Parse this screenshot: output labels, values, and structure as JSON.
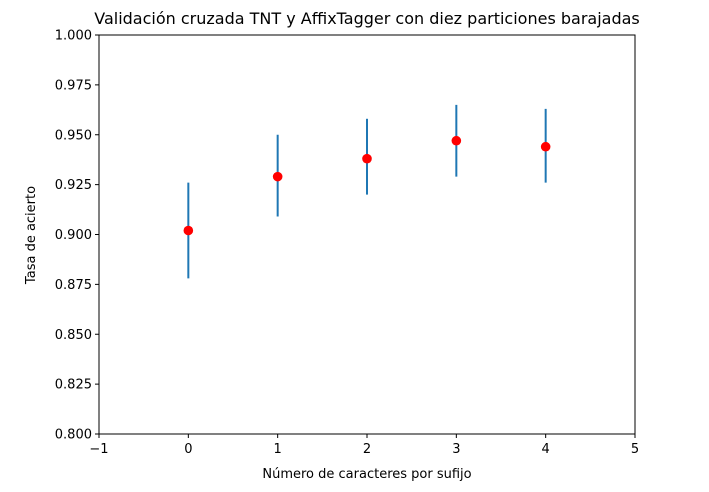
{
  "chart_data": {
    "type": "scatter",
    "title": "Validación cruzada TNT y AffixTagger con diez particiones barajadas",
    "xlabel": "Número de caracteres por sufijo",
    "ylabel": "Tasa de acierto",
    "xlim": [
      -1,
      5
    ],
    "ylim": [
      0.8,
      1.0
    ],
    "xticks": [
      "−1",
      "0",
      "1",
      "2",
      "3",
      "4",
      "5"
    ],
    "xtick_values": [
      -1,
      0,
      1,
      2,
      3,
      4,
      5
    ],
    "yticks": [
      "0.800",
      "0.825",
      "0.850",
      "0.875",
      "0.900",
      "0.925",
      "0.950",
      "0.975",
      "1.000"
    ],
    "ytick_values": [
      0.8,
      0.825,
      0.85,
      0.875,
      0.9,
      0.925,
      0.95,
      0.975,
      1.0
    ],
    "grid": false,
    "x": [
      0,
      1,
      2,
      3,
      4
    ],
    "y": [
      0.902,
      0.929,
      0.938,
      0.947,
      0.944
    ],
    "error_low": [
      0.878,
      0.909,
      0.92,
      0.929,
      0.926
    ],
    "error_high": [
      0.926,
      0.95,
      0.958,
      0.965,
      0.963
    ],
    "point_color": "#ff0000",
    "errorbar_color": "#1f77b4"
  }
}
